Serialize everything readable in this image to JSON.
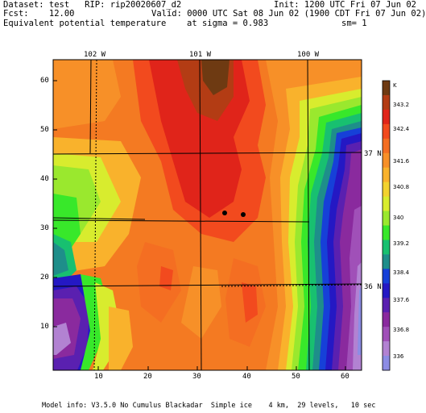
{
  "header": {
    "dataset": "Dataset: test   RIP: rip20020607_d2",
    "init": "Init: 1200 UTC Fri 07 Jun 02",
    "fcst": "Fcst:    12.00",
    "valid": "Valid: 0000 UTC Sat 08 Jun 02 (1900 CDT Fri 07 Jun 02)",
    "field": "Equivalent potential temperature",
    "sigma": "at sigma = 0.983",
    "sm": "sm= 1"
  },
  "axes": {
    "x_ticks": [
      "10",
      "20",
      "30",
      "40",
      "50",
      "60"
    ],
    "y_ticks": [
      "10",
      "20",
      "30",
      "40",
      "50",
      "60"
    ],
    "lon_labels": [
      "102 W",
      "101 W",
      "100 W"
    ],
    "lat_labels": [
      "37 N",
      "36 N"
    ]
  },
  "colorbar": {
    "unit": "K",
    "labels": [
      "343.2",
      "342.4",
      "341.6",
      "340.8",
      "340",
      "339.2",
      "338.4",
      "337.6",
      "336.8",
      "336"
    ],
    "colors": [
      "#6e3a12",
      "#b33c14",
      "#e0241a",
      "#f24a1e",
      "#f46e22",
      "#f79028",
      "#f9b22c",
      "#f2d22f",
      "#d8ec2e",
      "#9ae82e",
      "#38e82a",
      "#18c070",
      "#1e8e8a",
      "#1640d8",
      "#2418c4",
      "#5a20b0",
      "#8a2a9e",
      "#a050b8",
      "#b282d2",
      "#8c8ce4"
    ]
  },
  "footer": "Model info: V3.5.0 No Cumulus Blackadar  Simple ice    4 km,  29 levels,   10 sec",
  "chart_data": {
    "type": "heatmap",
    "title": "Equivalent potential temperature",
    "colorbar_unit": "K",
    "colorbar_ticks": [
      343.2,
      342.4,
      341.6,
      340.8,
      340,
      339.2,
      338.4,
      337.6,
      336.8,
      336
    ],
    "xlim": [
      1,
      64
    ],
    "ylim": [
      1,
      64
    ],
    "x_ticks": [
      10,
      20,
      30,
      40,
      50,
      60
    ],
    "y_ticks": [
      10,
      20,
      30,
      40,
      50,
      60
    ],
    "longitudes": [
      "102 W",
      "101 W",
      "100 W"
    ],
    "latitudes": [
      "37 N",
      "36 N"
    ],
    "markers": [
      {
        "x": 35,
        "y": 33
      },
      {
        "x": 39,
        "y": 33
      }
    ]
  }
}
